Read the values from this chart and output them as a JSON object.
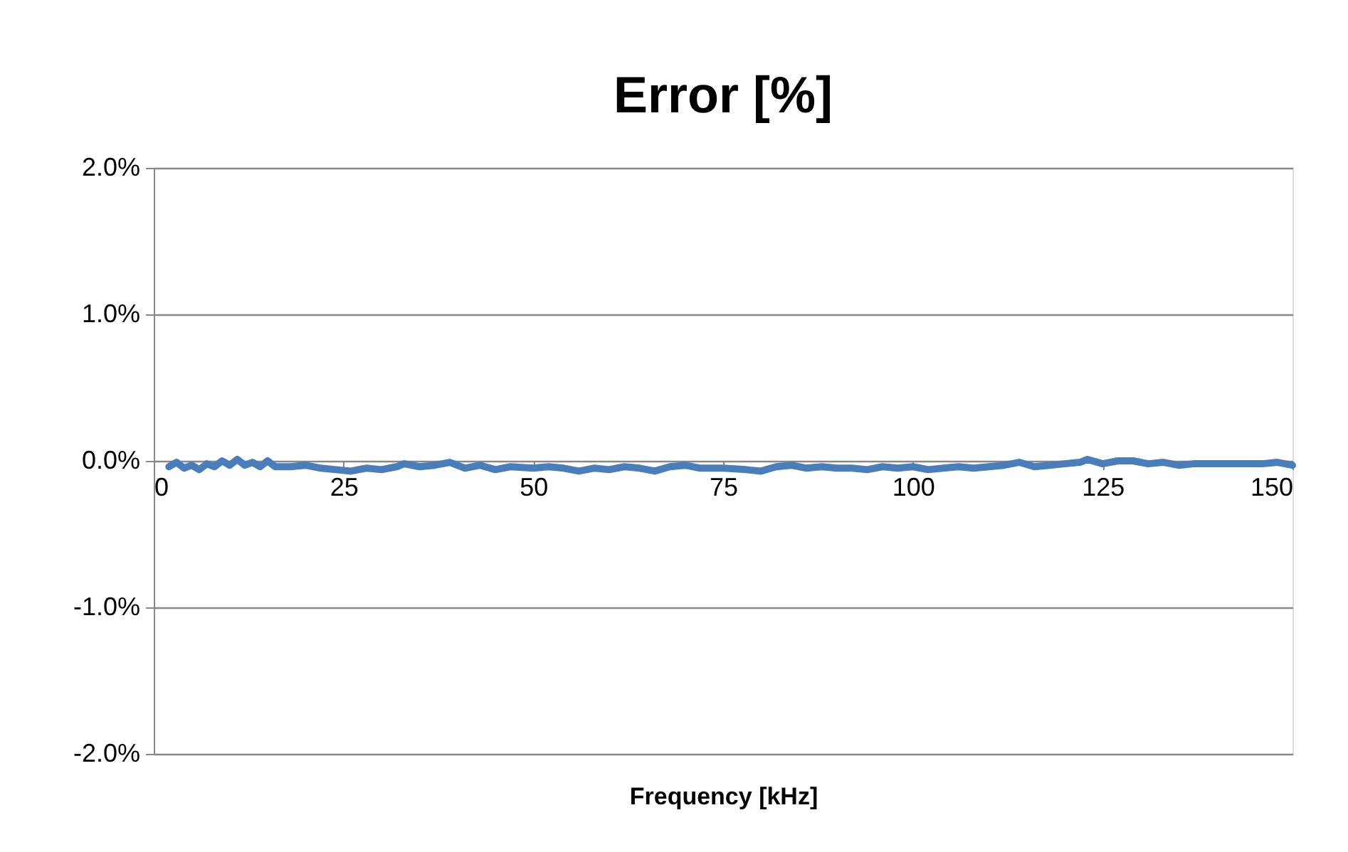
{
  "chart_data": {
    "type": "line",
    "title": "Error [%]",
    "xlabel": "Frequency [kHz]",
    "x": [
      2,
      3,
      4,
      5,
      6,
      7,
      8,
      9,
      10,
      11,
      12,
      13,
      14,
      15,
      16,
      18,
      20,
      22,
      24,
      26,
      28,
      30,
      32,
      33,
      35,
      37,
      39,
      41,
      43,
      45,
      47,
      50,
      52,
      54,
      56,
      58,
      60,
      62,
      64,
      66,
      68,
      70,
      72,
      75,
      78,
      80,
      82,
      84,
      86,
      88,
      90,
      92,
      94,
      96,
      98,
      100,
      102,
      104,
      106,
      108,
      110,
      112,
      114,
      116,
      118,
      120,
      122,
      123,
      125,
      127,
      129,
      131,
      133,
      135,
      137,
      140,
      143,
      146,
      148,
      150
    ],
    "series": [
      {
        "color": "#4a7ebb",
        "values": [
          -0.04,
          -0.01,
          -0.05,
          -0.03,
          -0.06,
          -0.02,
          -0.04,
          0.0,
          -0.03,
          0.01,
          -0.03,
          -0.01,
          -0.04,
          0.0,
          -0.04,
          -0.04,
          -0.03,
          -0.05,
          -0.06,
          -0.07,
          -0.05,
          -0.06,
          -0.04,
          -0.02,
          -0.04,
          -0.03,
          -0.01,
          -0.05,
          -0.03,
          -0.06,
          -0.04,
          -0.05,
          -0.04,
          -0.05,
          -0.07,
          -0.05,
          -0.06,
          -0.04,
          -0.05,
          -0.07,
          -0.04,
          -0.03,
          -0.05,
          -0.05,
          -0.06,
          -0.07,
          -0.04,
          -0.03,
          -0.05,
          -0.04,
          -0.05,
          -0.05,
          -0.06,
          -0.04,
          -0.05,
          -0.04,
          -0.06,
          -0.05,
          -0.04,
          -0.05,
          -0.04,
          -0.03,
          -0.01,
          -0.04,
          -0.03,
          -0.02,
          -0.01,
          0.01,
          -0.02,
          0.0,
          0.0,
          -0.02,
          -0.01,
          -0.03,
          -0.02,
          -0.02,
          -0.02,
          -0.02,
          -0.01,
          -0.03
        ]
      }
    ],
    "xlim": [
      0,
      150
    ],
    "xticks": [
      0,
      25,
      50,
      75,
      100,
      125,
      150
    ],
    "ylim": [
      -2,
      2
    ],
    "yticks": [
      {
        "value": -2,
        "label": "-2.0%"
      },
      {
        "value": -1,
        "label": "-1.0%"
      },
      {
        "value": 0,
        "label": "0.0%"
      },
      {
        "value": 1,
        "label": "1.0%"
      },
      {
        "value": 2,
        "label": "2.0%"
      }
    ],
    "grid": "y",
    "marker": "none",
    "line_style": "solid"
  }
}
